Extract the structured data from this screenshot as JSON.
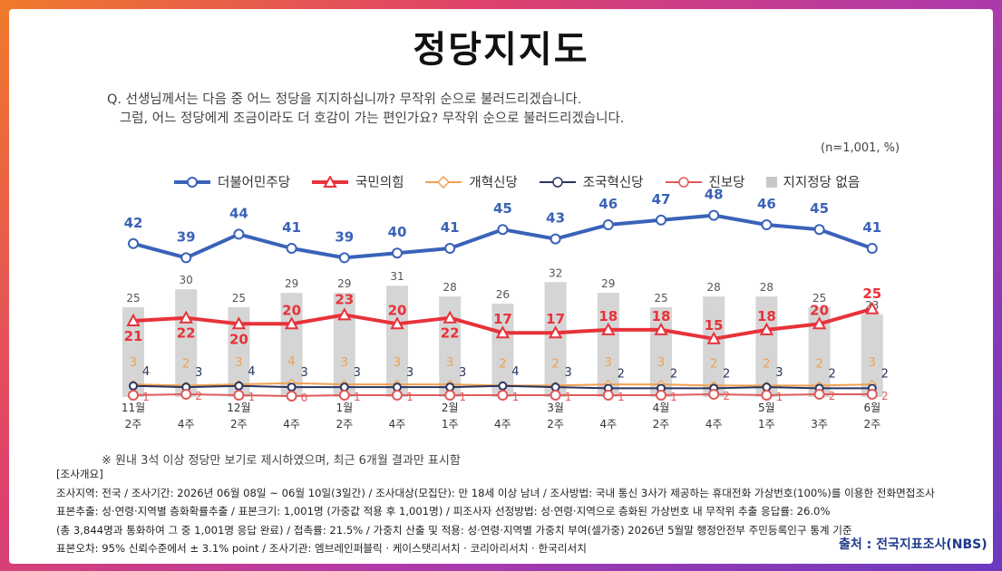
{
  "title": "정당지지도",
  "question": {
    "line1": "Q. 선생님께서는 다음 중 어느 정당을 지지하십니까? 무작위 순으로 불러드리겠습니다.",
    "line2": "그럼, 어느 정당에게 조금이라도 더 호감이 가는 편인가요? 무작위 순으로 불러드리겠습니다."
  },
  "unit_note": "(n=1,001, %)",
  "legend": [
    "더불어민주당",
    "국민의힘",
    "개혁신당",
    "조국혁신당",
    "진보당",
    "지지정당 없음"
  ],
  "colors": {
    "democratic": "#3a62b8",
    "ppp": "#e8323a",
    "reform": "#f0a050",
    "rebuild": "#2a3560",
    "progressive": "#e05a5a",
    "none": "#d5d5d5"
  },
  "chart_data": {
    "type": "line",
    "categories": [
      "11월 2주",
      "11월 4주",
      "12월 2주",
      "12월 4주",
      "1월 2주",
      "1월 4주",
      "2월 1주",
      "2월 4주",
      "3월 2주",
      "3월 4주",
      "4월 2주",
      "4월 4주",
      "5월 1주",
      "5월 3주",
      "6월 2주"
    ],
    "x_tick_labels": [
      {
        "month": "11월",
        "week": "2주"
      },
      {
        "month": "",
        "week": "4주"
      },
      {
        "month": "12월",
        "week": "2주"
      },
      {
        "month": "",
        "week": "4주"
      },
      {
        "month": "1월",
        "week": "2주"
      },
      {
        "month": "",
        "week": "4주"
      },
      {
        "month": "2월",
        "week": "1주"
      },
      {
        "month": "",
        "week": "4주"
      },
      {
        "month": "3월",
        "week": "2주"
      },
      {
        "month": "",
        "week": "4주"
      },
      {
        "month": "4월",
        "week": "2주"
      },
      {
        "month": "",
        "week": "4주"
      },
      {
        "month": "5월",
        "week": "1주"
      },
      {
        "month": "",
        "week": "3주"
      },
      {
        "month": "6월",
        "week": "2주"
      }
    ],
    "series": [
      {
        "name": "더불어민주당",
        "kind": "line",
        "values": [
          42,
          39,
          44,
          41,
          39,
          40,
          41,
          45,
          43,
          46,
          47,
          48,
          46,
          45,
          41
        ]
      },
      {
        "name": "국민의힘",
        "kind": "line",
        "values": [
          21,
          22,
          20,
          20,
          23,
          20,
          22,
          17,
          17,
          18,
          18,
          15,
          18,
          20,
          25
        ]
      },
      {
        "name": "개혁신당",
        "kind": "line",
        "values": [
          3,
          2,
          3,
          4,
          3,
          3,
          3,
          2,
          2,
          3,
          3,
          2,
          2,
          2,
          3
        ]
      },
      {
        "name": "조국혁신당",
        "kind": "line",
        "values": [
          4,
          3,
          4,
          3,
          3,
          3,
          3,
          4,
          3,
          2,
          2,
          2,
          3,
          2,
          2
        ]
      },
      {
        "name": "진보당",
        "kind": "line",
        "values": [
          1,
          2,
          1,
          0,
          1,
          1,
          1,
          1,
          1,
          1,
          1,
          2,
          1,
          2,
          2
        ]
      },
      {
        "name": "지지정당 없음",
        "kind": "bar",
        "values": [
          25,
          30,
          25,
          29,
          29,
          31,
          28,
          26,
          32,
          29,
          25,
          28,
          28,
          25,
          23
        ]
      }
    ],
    "grid": false,
    "legend_position": "top"
  },
  "footnote": "※ 원내 3석 이상 정당만 보기로 제시하였으며, 최근 6개월 결과만 표시함",
  "survey": {
    "heading": "[조사개요]",
    "line1": "조사지역: 전국 / 조사기간: 2026년 06월 08일 ~ 06월 10일(3일간) / 조사대상(모집단): 만 18세 이상 남녀 / 조사방법: 국내 통신 3사가 제공하는 휴대전화 가상번호(100%)를 이용한 전화면접조사",
    "line2": "표본추출: 성·연령·지역별 층화확률추출 / 표본크기: 1,001명 (가중값 적용 후 1,001명) / 피조사자 선정방법: 성·연령·지역으로 층화된 가상번호 내 무작위 추출 응답률: 26.0%",
    "line3": "(총 3,844명과 통화하여 그 중 1,001명 응답 완료) / 접촉률: 21.5% / 가중치 산출 및 적용: 성·연령·지역별 가중치 부여(셀가중) 2026년 5월말 행정안전부 주민등록인구 통계 기준",
    "line4": "표본오차: 95% 신뢰수준에서 ± 3.1% point / 조사기관: 엠브레인퍼블릭 · 케이스탯리서치 · 코리아리서치 · 한국리서치"
  },
  "source": "출처 : 전국지표조사(NBS)"
}
